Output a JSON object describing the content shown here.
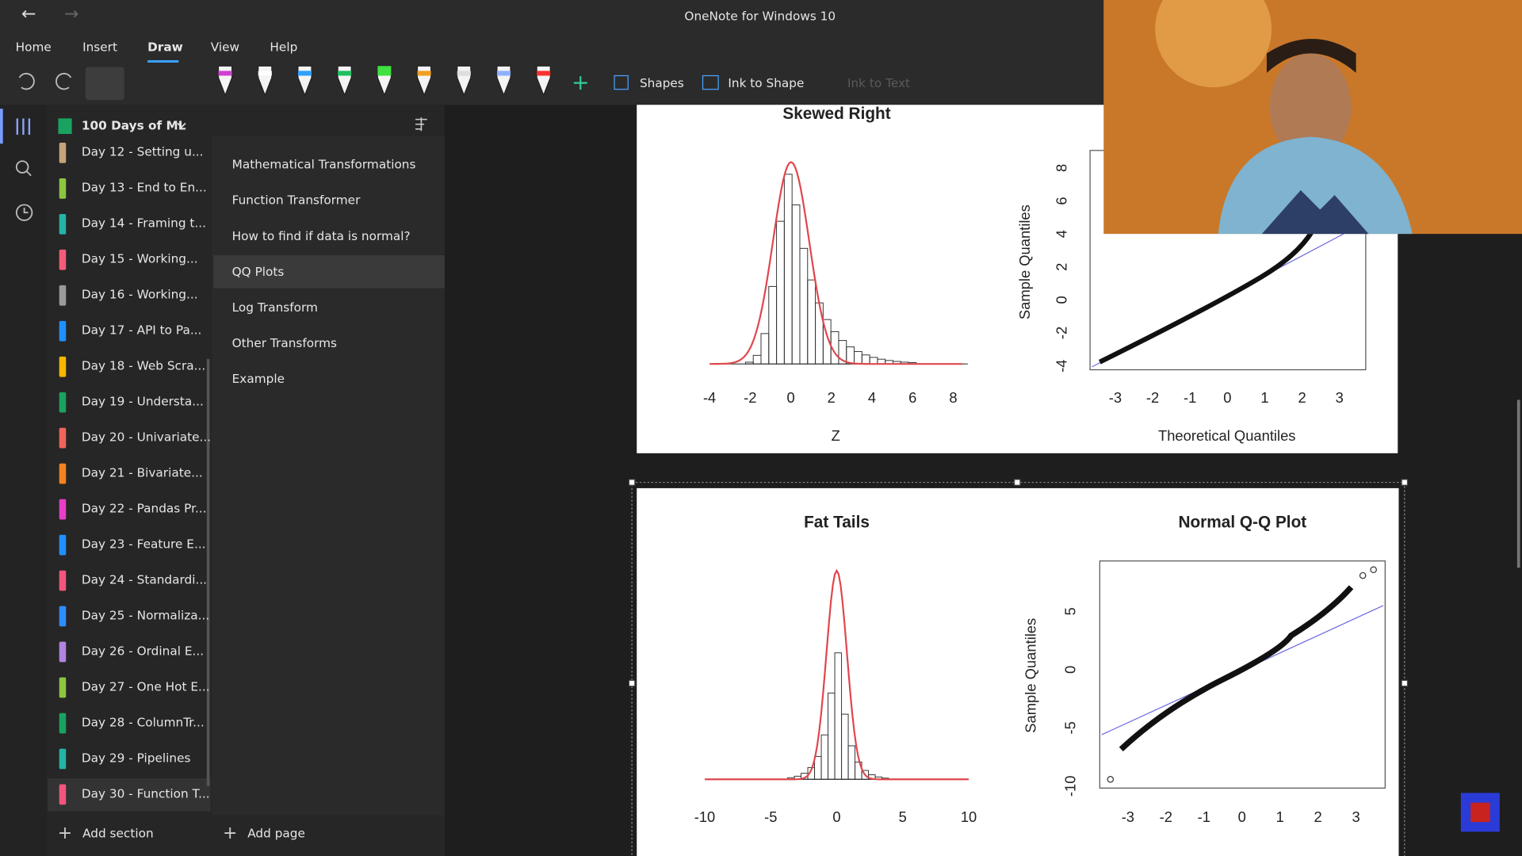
{
  "app_title": "OneNote for Windows 10",
  "menu": [
    "Home",
    "Insert",
    "Draw",
    "View",
    "Help"
  ],
  "toolbar": {
    "shapes": "Shapes",
    "ink_to_shape": "Ink to Shape",
    "ink_to_text": "Ink to Text"
  },
  "notebook": "100 Days of ML",
  "sections": [
    {
      "name": "Day 12 - Setting u...",
      "color": "#c8a27a"
    },
    {
      "name": "Day 13 - End to En...",
      "color": "#8cc63f"
    },
    {
      "name": "Day 14 - Framing t...",
      "color": "#23b4a8"
    },
    {
      "name": "Day 15 - Working...",
      "color": "#f25c78"
    },
    {
      "name": "Day 16 - Working...",
      "color": "#9a9a9a"
    },
    {
      "name": "Day 17 - API to Pa...",
      "color": "#1e90ff"
    },
    {
      "name": "Day 18 - Web Scra...",
      "color": "#f5b700"
    },
    {
      "name": "Day 19 - Understa...",
      "color": "#1aa260"
    },
    {
      "name": "Day 20 - Univariate...",
      "color": "#f0645a"
    },
    {
      "name": "Day 21 - Bivariate...",
      "color": "#f58220"
    },
    {
      "name": "Day 22 - Pandas Pr...",
      "color": "#e83ec7"
    },
    {
      "name": "Day 23 - Feature E...",
      "color": "#1e90ff"
    },
    {
      "name": "Day 24 - Standardi...",
      "color": "#f2557e"
    },
    {
      "name": "Day 25 - Normaliza...",
      "color": "#2f8cff"
    },
    {
      "name": "Day 26 - Ordinal E...",
      "color": "#b084e0"
    },
    {
      "name": "Day 27 - One Hot E...",
      "color": "#8cc63f"
    },
    {
      "name": "Day 28 - ColumnTr...",
      "color": "#1aa260"
    },
    {
      "name": "Day 29 - Pipelines",
      "color": "#23b4a8"
    },
    {
      "name": "Day 30 - Function T...",
      "color": "#f2557e"
    }
  ],
  "pages": [
    "Mathematical Transformations",
    "Function Transformer",
    "How to find if data is normal?",
    "QQ Plots",
    "Log Transform",
    "Other Transforms",
    "Example"
  ],
  "add_section": "Add section",
  "add_page": "Add page",
  "figure_top": {
    "left": {
      "title": "Skewed Right",
      "xlabel": "Z",
      "xticks": [
        "-4",
        "-2",
        "0",
        "2",
        "4",
        "6",
        "8"
      ]
    },
    "right": {
      "ylabel": "Sample Quantiles",
      "xlabel": "Theoretical Quantiles",
      "xticks": [
        "-3",
        "-2",
        "-1",
        "0",
        "1",
        "2",
        "3"
      ],
      "yticks": [
        "-4",
        "-2",
        "0",
        "2",
        "4",
        "6",
        "8"
      ]
    }
  },
  "figure_bottom": {
    "left": {
      "title": "Fat Tails",
      "xticks": [
        "-10",
        "-5",
        "0",
        "5",
        "10"
      ]
    },
    "right": {
      "title": "Normal Q-Q Plot",
      "ylabel": "Sample Quantiles",
      "xticks": [
        "-3",
        "-2",
        "-1",
        "0",
        "1",
        "2",
        "3"
      ],
      "yticks": [
        "-10",
        "-5",
        "0",
        "5"
      ]
    }
  }
}
